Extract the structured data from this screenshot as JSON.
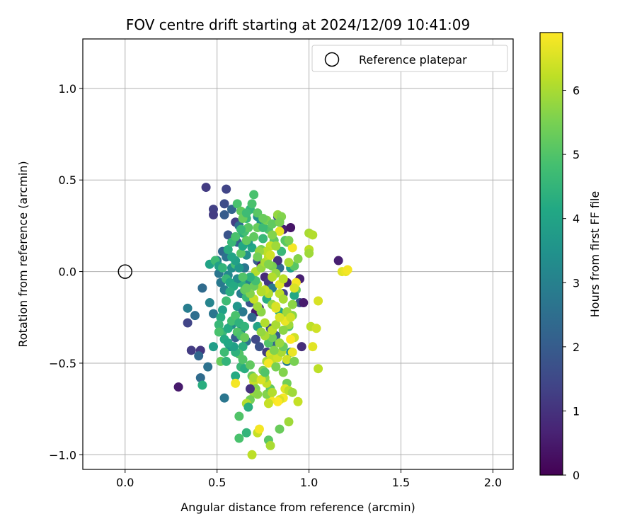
{
  "chart_data": {
    "type": "scatter",
    "title": "FOV centre drift starting at 2024/12/09 10:41:09",
    "xlabel": "Angular distance from reference (arcmin)",
    "ylabel": "Rotation from reference (arcmin)",
    "xlim": [
      -0.23,
      2.11
    ],
    "ylim": [
      -1.08,
      1.27
    ],
    "xticks": [
      0.0,
      0.5,
      1.0,
      1.5,
      2.0
    ],
    "xtick_labels": [
      "0.0",
      "0.5",
      "1.0",
      "1.5",
      "2.0"
    ],
    "yticks": [
      -1.0,
      -0.5,
      0.0,
      0.5,
      1.0
    ],
    "ytick_labels": [
      "−1.0",
      "−0.5",
      "0.0",
      "0.5",
      "1.0"
    ],
    "grid": true,
    "legend": {
      "position": "top-right",
      "entries": [
        "Reference platepar"
      ]
    },
    "reference_point": {
      "x": 0.0,
      "y": 0.0,
      "marker": "open-circle"
    },
    "colorbar": {
      "label": "Hours from first FF file",
      "min": 0,
      "max": 6.9,
      "ticks": [
        0,
        1,
        2,
        3,
        4,
        5,
        6
      ],
      "tick_labels": [
        "0",
        "1",
        "2",
        "3",
        "4",
        "5",
        "6"
      ],
      "colormap": "viridis"
    },
    "points": [
      [
        0.29,
        -0.63,
        0.5
      ],
      [
        0.44,
        0.46,
        1.2
      ],
      [
        0.48,
        0.34,
        1.3
      ],
      [
        0.48,
        0.31,
        1.2
      ],
      [
        0.55,
        0.45,
        1.4
      ],
      [
        0.54,
        0.37,
        1.6
      ],
      [
        0.54,
        0.31,
        2.0
      ],
      [
        0.58,
        0.34,
        2.2
      ],
      [
        0.6,
        0.27,
        1.3
      ],
      [
        0.62,
        0.25,
        2.5
      ],
      [
        0.56,
        0.2,
        1.8
      ],
      [
        0.61,
        0.16,
        2.1
      ],
      [
        0.53,
        0.11,
        2.3
      ],
      [
        0.55,
        0.08,
        2.6
      ],
      [
        0.5,
        0.06,
        3.0
      ],
      [
        0.51,
        -0.01,
        2.7
      ],
      [
        0.52,
        -0.06,
        2.8
      ],
      [
        0.54,
        -0.1,
        2.9
      ],
      [
        0.56,
        -0.02,
        3.2
      ],
      [
        0.58,
        0.02,
        3.4
      ],
      [
        0.42,
        -0.09,
        2.4
      ],
      [
        0.46,
        -0.17,
        3.1
      ],
      [
        0.48,
        -0.23,
        2.7
      ],
      [
        0.34,
        -0.2,
        2.9
      ],
      [
        0.38,
        -0.24,
        2.5
      ],
      [
        0.34,
        -0.28,
        1.4
      ],
      [
        0.36,
        -0.43,
        1.2
      ],
      [
        0.41,
        -0.43,
        1.1
      ],
      [
        0.4,
        -0.46,
        2.3
      ],
      [
        0.45,
        -0.52,
        2.6
      ],
      [
        0.41,
        -0.58,
        2.4
      ],
      [
        0.42,
        -0.62,
        4.3
      ],
      [
        0.48,
        -0.41,
        3.8
      ],
      [
        0.54,
        -0.69,
        2.7
      ],
      [
        0.57,
        -0.41,
        3.5
      ],
      [
        0.6,
        -0.36,
        2.1
      ],
      [
        0.58,
        -0.29,
        3.3
      ],
      [
        0.61,
        -0.19,
        3.6
      ],
      [
        0.63,
        -0.12,
        2.9
      ],
      [
        0.66,
        -0.08,
        3.7
      ],
      [
        0.64,
        -0.22,
        2.8
      ],
      [
        0.63,
        -0.32,
        3.0
      ],
      [
        0.66,
        -0.38,
        2.6
      ],
      [
        0.67,
        -0.05,
        3.1
      ],
      [
        0.65,
        0.02,
        2.7
      ],
      [
        0.66,
        0.09,
        3.4
      ],
      [
        0.69,
        0.13,
        4.1
      ],
      [
        0.67,
        0.16,
        3.8
      ],
      [
        0.64,
        0.21,
        4.3
      ],
      [
        0.66,
        0.29,
        4.6
      ],
      [
        0.68,
        0.34,
        4.5
      ],
      [
        0.7,
        0.42,
        4.9
      ],
      [
        0.61,
        0.37,
        4.9
      ],
      [
        0.63,
        0.33,
        5.2
      ],
      [
        0.72,
        0.3,
        3.4
      ],
      [
        0.74,
        0.27,
        3.6
      ],
      [
        0.77,
        0.28,
        5.7
      ],
      [
        0.78,
        0.23,
        5.0
      ],
      [
        0.75,
        0.18,
        4.6
      ],
      [
        0.74,
        0.12,
        5.5
      ],
      [
        0.72,
        0.06,
        2.0
      ],
      [
        0.74,
        0.03,
        0.4
      ],
      [
        0.76,
        -0.03,
        0.8
      ],
      [
        0.78,
        -0.06,
        1.1
      ],
      [
        0.8,
        -0.09,
        2.8
      ],
      [
        0.77,
        -0.15,
        4.3
      ],
      [
        0.73,
        -0.2,
        1.0
      ],
      [
        0.71,
        -0.22,
        0.5
      ],
      [
        0.68,
        -0.17,
        1.8
      ],
      [
        0.69,
        -0.25,
        2.3
      ],
      [
        0.72,
        -0.3,
        4.0
      ],
      [
        0.71,
        -0.37,
        1.5
      ],
      [
        0.73,
        -0.41,
        1.7
      ],
      [
        0.77,
        -0.44,
        1.2
      ],
      [
        0.8,
        -0.39,
        2.2
      ],
      [
        0.82,
        -0.35,
        2.0
      ],
      [
        0.79,
        -0.31,
        1.6
      ],
      [
        0.84,
        -0.22,
        4.1
      ],
      [
        0.86,
        -0.12,
        1.3
      ],
      [
        0.88,
        -0.06,
        0.6
      ],
      [
        0.84,
        0.02,
        2.4
      ],
      [
        0.83,
        0.06,
        1.0
      ],
      [
        0.85,
        0.11,
        4.6
      ],
      [
        0.88,
        0.16,
        5.3
      ],
      [
        0.86,
        0.23,
        0.6
      ],
      [
        0.9,
        0.24,
        0.4
      ],
      [
        0.83,
        0.3,
        1.6
      ],
      [
        0.84,
        0.27,
        2.1
      ],
      [
        0.87,
        0.17,
        5.1
      ],
      [
        0.9,
        0.02,
        3.9
      ],
      [
        0.92,
        0.03,
        5.1
      ],
      [
        0.94,
        0.07,
        5.6
      ],
      [
        0.95,
        -0.04,
        0.6
      ],
      [
        0.93,
        -0.1,
        5.2
      ],
      [
        0.92,
        -0.13,
        4.1
      ],
      [
        0.95,
        -0.17,
        1.8
      ],
      [
        0.97,
        -0.17,
        0.5
      ],
      [
        0.96,
        -0.41,
        0.9
      ],
      [
        0.9,
        -0.44,
        3.6
      ],
      [
        0.88,
        -0.49,
        2.9
      ],
      [
        0.89,
        -0.3,
        5.0
      ],
      [
        0.87,
        -0.26,
        5.4
      ],
      [
        0.91,
        -0.24,
        5.7
      ],
      [
        0.89,
        -0.29,
        5.9
      ],
      [
        0.92,
        -0.36,
        6.4
      ],
      [
        1.0,
        0.21,
        6.0
      ],
      [
        1.02,
        0.2,
        6.1
      ],
      [
        1.0,
        0.12,
        6.2
      ],
      [
        1.0,
        0.1,
        5.9
      ],
      [
        1.01,
        -0.3,
        6.2
      ],
      [
        1.04,
        -0.31,
        6.4
      ],
      [
        1.02,
        -0.41,
        6.6
      ],
      [
        1.05,
        -0.53,
        6.2
      ],
      [
        1.05,
        -0.16,
        6.5
      ],
      [
        1.16,
        0.06,
        0.6
      ],
      [
        1.18,
        0.0,
        6.6
      ],
      [
        1.2,
        0.0,
        6.7
      ],
      [
        1.21,
        0.01,
        6.8
      ],
      [
        0.93,
        -0.06,
        6.8
      ],
      [
        0.92,
        -0.09,
        6.5
      ],
      [
        0.91,
        -0.18,
        5.7
      ],
      [
        0.87,
        -0.27,
        6.7
      ],
      [
        0.9,
        -0.37,
        6.9
      ],
      [
        0.91,
        -0.44,
        6.7
      ],
      [
        0.88,
        -0.48,
        6.4
      ],
      [
        0.92,
        -0.49,
        5.5
      ],
      [
        0.86,
        -0.55,
        5.6
      ],
      [
        0.88,
        -0.61,
        5.4
      ],
      [
        0.87,
        -0.64,
        6.6
      ],
      [
        0.89,
        -0.65,
        6.2
      ],
      [
        0.91,
        -0.66,
        5.9
      ],
      [
        0.94,
        -0.71,
        6.3
      ],
      [
        0.86,
        -0.69,
        6.8
      ],
      [
        0.84,
        -0.7,
        6.5
      ],
      [
        0.83,
        -0.71,
        6.9
      ],
      [
        0.79,
        -0.7,
        6.8
      ],
      [
        0.78,
        -0.72,
        6.3
      ],
      [
        0.77,
        -0.67,
        5.6
      ],
      [
        0.79,
        -0.64,
        5.2
      ],
      [
        0.8,
        -0.66,
        6.1
      ],
      [
        0.77,
        -0.61,
        6.3
      ],
      [
        0.76,
        -0.58,
        5.7
      ],
      [
        0.75,
        -0.54,
        5.4
      ],
      [
        0.77,
        -0.49,
        6.0
      ],
      [
        0.79,
        -0.45,
        6.5
      ],
      [
        0.8,
        -0.48,
        6.3
      ],
      [
        0.81,
        -0.43,
        6.7
      ],
      [
        0.83,
        -0.47,
        6.4
      ],
      [
        0.78,
        -0.39,
        5.0
      ],
      [
        0.8,
        -0.36,
        5.4
      ],
      [
        0.8,
        -0.32,
        6.2
      ],
      [
        0.82,
        -0.29,
        6.0
      ],
      [
        0.84,
        -0.25,
        6.5
      ],
      [
        0.82,
        -0.2,
        6.7
      ],
      [
        0.8,
        -0.18,
        5.8
      ],
      [
        0.78,
        -0.12,
        6.1
      ],
      [
        0.76,
        -0.1,
        6.3
      ],
      [
        0.74,
        -0.11,
        6.1
      ],
      [
        0.72,
        -0.07,
        6.0
      ],
      [
        0.7,
        -0.08,
        5.3
      ],
      [
        0.69,
        -0.03,
        6.4
      ],
      [
        0.71,
        0.0,
        6.1
      ],
      [
        0.74,
        0.02,
        5.8
      ],
      [
        0.76,
        0.05,
        6.0
      ],
      [
        0.78,
        0.08,
        6.2
      ],
      [
        0.8,
        0.03,
        5.5
      ],
      [
        0.82,
        -0.01,
        5.8
      ],
      [
        0.84,
        -0.07,
        6.6
      ],
      [
        0.86,
        -0.04,
        6.2
      ],
      [
        0.89,
        0.05,
        6.0
      ],
      [
        0.91,
        0.13,
        6.8
      ],
      [
        0.89,
        0.17,
        5.5
      ],
      [
        0.84,
        0.22,
        6.7
      ],
      [
        0.81,
        0.17,
        5.2
      ],
      [
        0.79,
        0.14,
        6.3
      ],
      [
        0.77,
        0.11,
        6.2
      ],
      [
        0.73,
        0.11,
        5.8
      ],
      [
        0.72,
        0.08,
        5.4
      ],
      [
        0.71,
        -0.05,
        4.8
      ],
      [
        0.68,
        -0.03,
        4.4
      ],
      [
        0.66,
        -0.14,
        4.6
      ],
      [
        0.65,
        -0.1,
        5.2
      ],
      [
        0.63,
        -0.06,
        4.4
      ],
      [
        0.61,
        -0.04,
        3.3
      ],
      [
        0.6,
        0.04,
        4.8
      ],
      [
        0.63,
        0.1,
        5.1
      ],
      [
        0.64,
        0.14,
        4.1
      ],
      [
        0.66,
        0.17,
        5.2
      ],
      [
        0.65,
        0.22,
        4.8
      ],
      [
        0.67,
        0.24,
        5.1
      ],
      [
        0.7,
        0.19,
        5.2
      ],
      [
        0.72,
        0.24,
        5.3
      ],
      [
        0.75,
        0.24,
        4.7
      ],
      [
        0.77,
        0.28,
        5.5
      ],
      [
        0.8,
        0.26,
        5.2
      ],
      [
        0.83,
        0.31,
        5.8
      ],
      [
        0.85,
        0.3,
        5.6
      ],
      [
        0.84,
        0.27,
        5.5
      ],
      [
        0.46,
        0.04,
        4.0
      ],
      [
        0.49,
        0.06,
        4.7
      ],
      [
        0.51,
        0.03,
        3.9
      ],
      [
        0.53,
        0.02,
        4.5
      ],
      [
        0.55,
        -0.04,
        4.6
      ],
      [
        0.57,
        -0.06,
        4.1
      ],
      [
        0.59,
        -0.08,
        4.2
      ],
      [
        0.57,
        -0.11,
        4.3
      ],
      [
        0.55,
        -0.16,
        4.7
      ],
      [
        0.53,
        -0.21,
        3.9
      ],
      [
        0.52,
        -0.25,
        4.3
      ],
      [
        0.51,
        -0.29,
        4.6
      ],
      [
        0.53,
        -0.33,
        4.6
      ],
      [
        0.51,
        -0.33,
        4.9
      ],
      [
        0.54,
        -0.37,
        4.2
      ],
      [
        0.56,
        -0.31,
        4.2
      ],
      [
        0.58,
        -0.27,
        4.8
      ],
      [
        0.6,
        -0.24,
        4.9
      ],
      [
        0.62,
        -0.28,
        4.4
      ],
      [
        0.61,
        -0.33,
        5.0
      ],
      [
        0.63,
        -0.35,
        4.9
      ],
      [
        0.65,
        -0.3,
        4.5
      ],
      [
        0.65,
        -0.36,
        5.3
      ],
      [
        0.64,
        -0.41,
        4.3
      ],
      [
        0.62,
        -0.45,
        5.0
      ],
      [
        0.6,
        -0.44,
        4.4
      ],
      [
        0.59,
        -0.41,
        3.9
      ],
      [
        0.56,
        -0.39,
        4.1
      ],
      [
        0.54,
        -0.44,
        4.7
      ],
      [
        0.52,
        -0.49,
        5.3
      ],
      [
        0.55,
        -0.49,
        4.5
      ],
      [
        0.6,
        -0.57,
        4.2
      ],
      [
        0.63,
        -0.52,
        4.6
      ],
      [
        0.64,
        -0.48,
        5.0
      ],
      [
        0.65,
        -0.53,
        4.3
      ],
      [
        0.68,
        -0.51,
        5.2
      ],
      [
        0.69,
        -0.57,
        5.3
      ],
      [
        0.7,
        -0.6,
        6.3
      ],
      [
        0.71,
        -0.64,
        5.6
      ],
      [
        0.7,
        -0.66,
        5.9
      ],
      [
        0.72,
        -0.67,
        5.7
      ],
      [
        0.68,
        -0.7,
        5.4
      ],
      [
        0.66,
        -0.72,
        6.1
      ],
      [
        0.67,
        -0.74,
        4.3
      ],
      [
        0.62,
        -0.79,
        5.0
      ],
      [
        0.66,
        -0.88,
        4.5
      ],
      [
        0.62,
        -0.91,
        4.9
      ],
      [
        0.72,
        -0.88,
        6.3
      ],
      [
        0.73,
        -0.86,
        6.8
      ],
      [
        0.78,
        -0.92,
        5.1
      ],
      [
        0.79,
        -0.95,
        6.0
      ],
      [
        0.84,
        -0.86,
        5.3
      ],
      [
        0.89,
        -0.82,
        5.9
      ],
      [
        0.69,
        -1.0,
        6.2
      ],
      [
        0.6,
        -0.61,
        6.8
      ],
      [
        0.68,
        -0.64,
        1.0
      ],
      [
        0.7,
        -0.58,
        6.0
      ],
      [
        0.74,
        -0.59,
        6.5
      ],
      [
        0.76,
        -0.55,
        5.0
      ],
      [
        0.78,
        -0.5,
        6.8
      ],
      [
        0.82,
        -0.52,
        5.5
      ],
      [
        0.85,
        -0.44,
        6.0
      ],
      [
        0.86,
        -0.41,
        5.3
      ],
      [
        0.81,
        -0.43,
        5.6
      ],
      [
        0.76,
        -0.35,
        6.0
      ],
      [
        0.74,
        -0.33,
        5.8
      ],
      [
        0.76,
        -0.28,
        6.1
      ],
      [
        0.74,
        -0.22,
        5.7
      ],
      [
        0.72,
        -0.19,
        5.9
      ],
      [
        0.7,
        -0.15,
        6.3
      ],
      [
        0.68,
        -0.12,
        5.6
      ],
      [
        0.66,
        -0.09,
        5.3
      ],
      [
        0.64,
        -0.03,
        5.0
      ],
      [
        0.62,
        0.02,
        3.6
      ],
      [
        0.6,
        0.06,
        3.9
      ],
      [
        0.58,
        0.08,
        4.0
      ],
      [
        0.56,
        0.12,
        4.3
      ],
      [
        0.58,
        0.16,
        4.6
      ],
      [
        0.6,
        0.19,
        4.9
      ],
      [
        0.63,
        0.23,
        4.6
      ],
      [
        0.64,
        0.29,
        5.3
      ],
      [
        0.66,
        0.32,
        4.7
      ],
      [
        0.69,
        0.37,
        4.9
      ],
      [
        0.72,
        0.32,
        5.1
      ],
      [
        0.75,
        0.29,
        5.3
      ],
      [
        0.8,
        0.2,
        5.6
      ],
      [
        0.82,
        0.14,
        5.9
      ],
      [
        0.79,
        0.09,
        6.4
      ],
      [
        0.78,
        0.04,
        5.6
      ],
      [
        0.8,
        -0.03,
        6.1
      ],
      [
        0.84,
        -0.12,
        6.2
      ],
      [
        0.86,
        -0.15,
        6.0
      ],
      [
        0.82,
        -0.19,
        6.5
      ],
      [
        0.88,
        -0.22,
        5.9
      ],
      [
        0.9,
        -0.25,
        6.4
      ],
      [
        0.86,
        -0.32,
        5.7
      ],
      [
        0.84,
        -0.39,
        5.8
      ]
    ]
  }
}
